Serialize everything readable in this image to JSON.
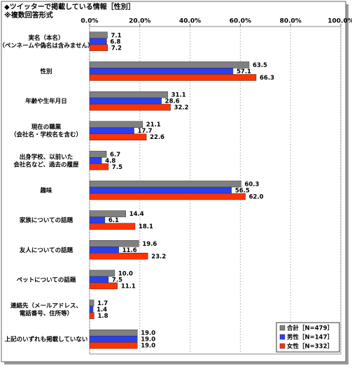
{
  "chart_data": {
    "type": "barh",
    "title": "◆ツイッターで掲載している情報［性別］",
    "subtitle": "※複数回答形式",
    "categories": [
      [
        "実名（本名）",
        "（ペンネームや偽名は含みません）"
      ],
      [
        "性別"
      ],
      [
        "年齢や生年月日"
      ],
      [
        "現在の職業",
        "（会社名・学校名を含む）"
      ],
      [
        "出身学校、以前いた",
        "会社名など、過去の履歴"
      ],
      [
        "趣味"
      ],
      [
        "家族についての話題"
      ],
      [
        "友人についての話題"
      ],
      [
        "ペットについての話題"
      ],
      [
        "連絡先（メールアドレス、",
        "電話番号、住所等）"
      ],
      [
        "上記のいずれも掲載していない"
      ]
    ],
    "series": [
      {
        "name": "合計［N=479］",
        "color": "#808080",
        "values": [
          7.1,
          63.5,
          31.1,
          21.1,
          6.7,
          60.3,
          14.4,
          19.6,
          10.0,
          1.7,
          19.0
        ],
        "value_labels": [
          "7.1",
          "63.5",
          "31.1",
          "21.1",
          "6.7",
          "60.3",
          "14.4",
          "19.6",
          "10.0",
          "1.7",
          "19.0"
        ]
      },
      {
        "name": "男性［N=147］",
        "color": "#2a3ff0",
        "values": [
          6.8,
          57.1,
          28.6,
          17.7,
          4.8,
          56.5,
          6.1,
          11.6,
          7.5,
          1.4,
          19.0
        ],
        "value_labels": [
          "6.8",
          "57.1",
          "28.6",
          "17.7",
          "4.8",
          "56.5",
          "6.1",
          "11.6",
          "7.5",
          "1.4",
          "19.0"
        ]
      },
      {
        "name": "女性［N=332］",
        "color": "#ff3300",
        "values": [
          7.2,
          66.3,
          32.2,
          22.6,
          7.5,
          62.0,
          18.1,
          23.2,
          11.1,
          1.8,
          19.0
        ],
        "value_labels": [
          "7.2",
          "66.3",
          "32.2",
          "22.6",
          "7.5",
          "62.0",
          "18.1",
          "23.2",
          "11.1",
          "1.8",
          "19.0"
        ]
      }
    ],
    "xlim": [
      0,
      100
    ],
    "xticks": [
      {
        "value": 0,
        "label": "0.0%"
      },
      {
        "value": 20,
        "label": "20.0%"
      },
      {
        "value": 40,
        "label": "40.0%"
      },
      {
        "value": 60,
        "label": "60.0%"
      },
      {
        "value": 80,
        "label": "80.0%"
      },
      {
        "value": 100,
        "label": "100.0%"
      }
    ],
    "grid": true,
    "legend": "lower-right"
  }
}
